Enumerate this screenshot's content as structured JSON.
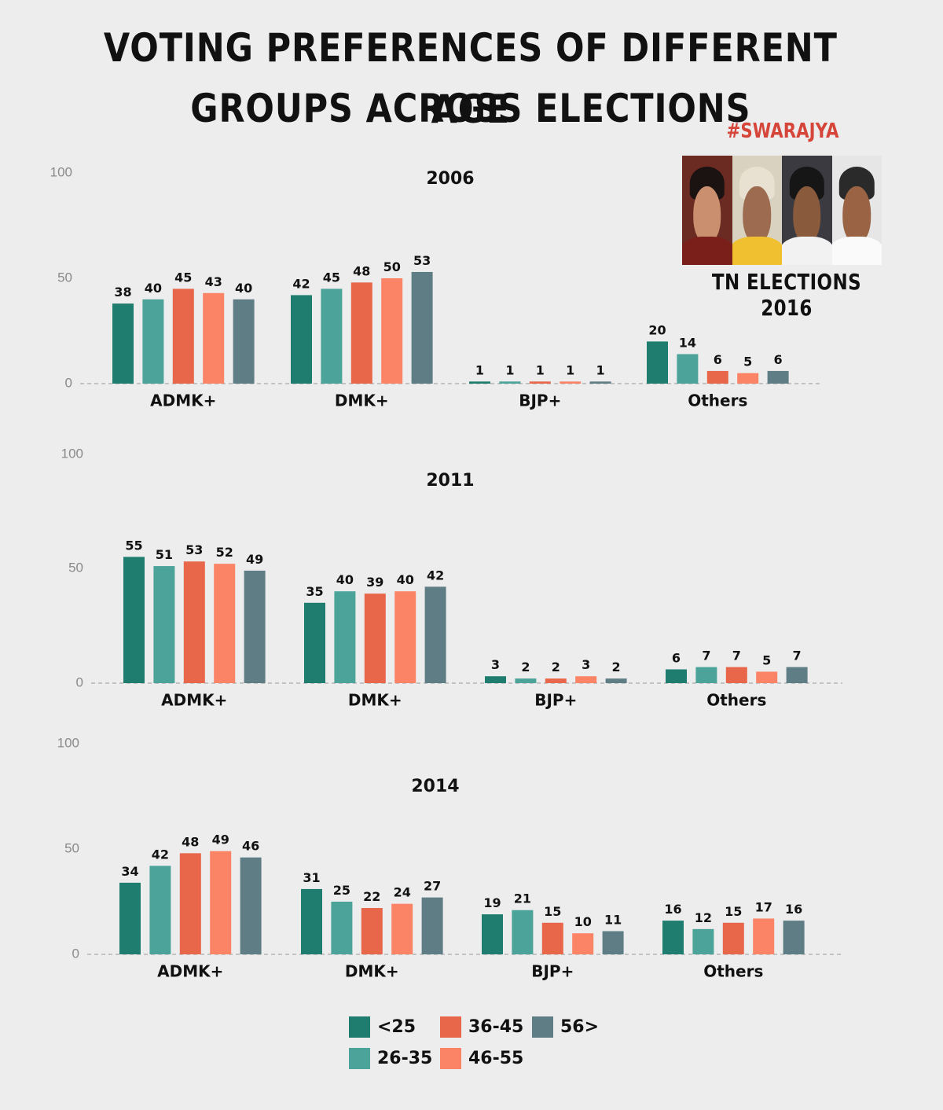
{
  "title_line1": "VOTING PREFERENCES OF DIFFERENT AGE",
  "title_line2": "GROUPS ACROSS ELECTIONS",
  "brand": "#SWARAJYA",
  "photo_caption": "TN ELECTIONS 2016",
  "colors": {
    "<25": "#1f7d6f",
    "26-35": "#4ba39a",
    "36-45": "#e8664a",
    "46-55": "#fb8467",
    "56>": "#5f7d84"
  },
  "legend": [
    {
      "label": "<25",
      "color": "#1f7d6f"
    },
    {
      "label": "26-35",
      "color": "#4ba39a"
    },
    {
      "label": "36-45",
      "color": "#e8664a"
    },
    {
      "label": "46-55",
      "color": "#fb8467"
    },
    {
      "label": "56>",
      "color": "#5f7d84"
    }
  ],
  "chart_data": [
    {
      "type": "bar",
      "title": "2006",
      "categories": [
        "ADMK+",
        "DMK+",
        "BJP+",
        "Others"
      ],
      "yticks": [
        0,
        50,
        100
      ],
      "ylim": [
        0,
        100
      ],
      "series": [
        {
          "name": "<25",
          "values": [
            38,
            42,
            1,
            20
          ]
        },
        {
          "name": "26-35",
          "values": [
            40,
            45,
            1,
            14
          ]
        },
        {
          "name": "36-45",
          "values": [
            45,
            48,
            1,
            6
          ]
        },
        {
          "name": "46-55",
          "values": [
            43,
            50,
            1,
            5
          ]
        },
        {
          "name": "56>",
          "values": [
            40,
            53,
            1,
            6
          ]
        }
      ]
    },
    {
      "type": "bar",
      "title": "2011",
      "categories": [
        "ADMK+",
        "DMK+",
        "BJP+",
        "Others"
      ],
      "yticks": [
        0,
        50,
        100
      ],
      "ylim": [
        0,
        100
      ],
      "series": [
        {
          "name": "<25",
          "values": [
            55,
            35,
            3,
            6
          ]
        },
        {
          "name": "26-35",
          "values": [
            51,
            40,
            2,
            7
          ]
        },
        {
          "name": "36-45",
          "values": [
            53,
            39,
            2,
            7
          ]
        },
        {
          "name": "46-55",
          "values": [
            52,
            40,
            3,
            5
          ]
        },
        {
          "name": "56>",
          "values": [
            49,
            42,
            2,
            7
          ]
        }
      ]
    },
    {
      "type": "bar",
      "title": "2014",
      "categories": [
        "ADMK+",
        "DMK+",
        "BJP+",
        "Others"
      ],
      "yticks": [
        0,
        50,
        100
      ],
      "ylim": [
        0,
        100
      ],
      "series": [
        {
          "name": "<25",
          "values": [
            34,
            31,
            19,
            16
          ]
        },
        {
          "name": "26-35",
          "values": [
            42,
            25,
            21,
            12
          ]
        },
        {
          "name": "36-45",
          "values": [
            48,
            22,
            15,
            15
          ]
        },
        {
          "name": "46-55",
          "values": [
            49,
            24,
            10,
            17
          ]
        },
        {
          "name": "56>",
          "values": [
            46,
            27,
            11,
            16
          ]
        }
      ]
    }
  ]
}
